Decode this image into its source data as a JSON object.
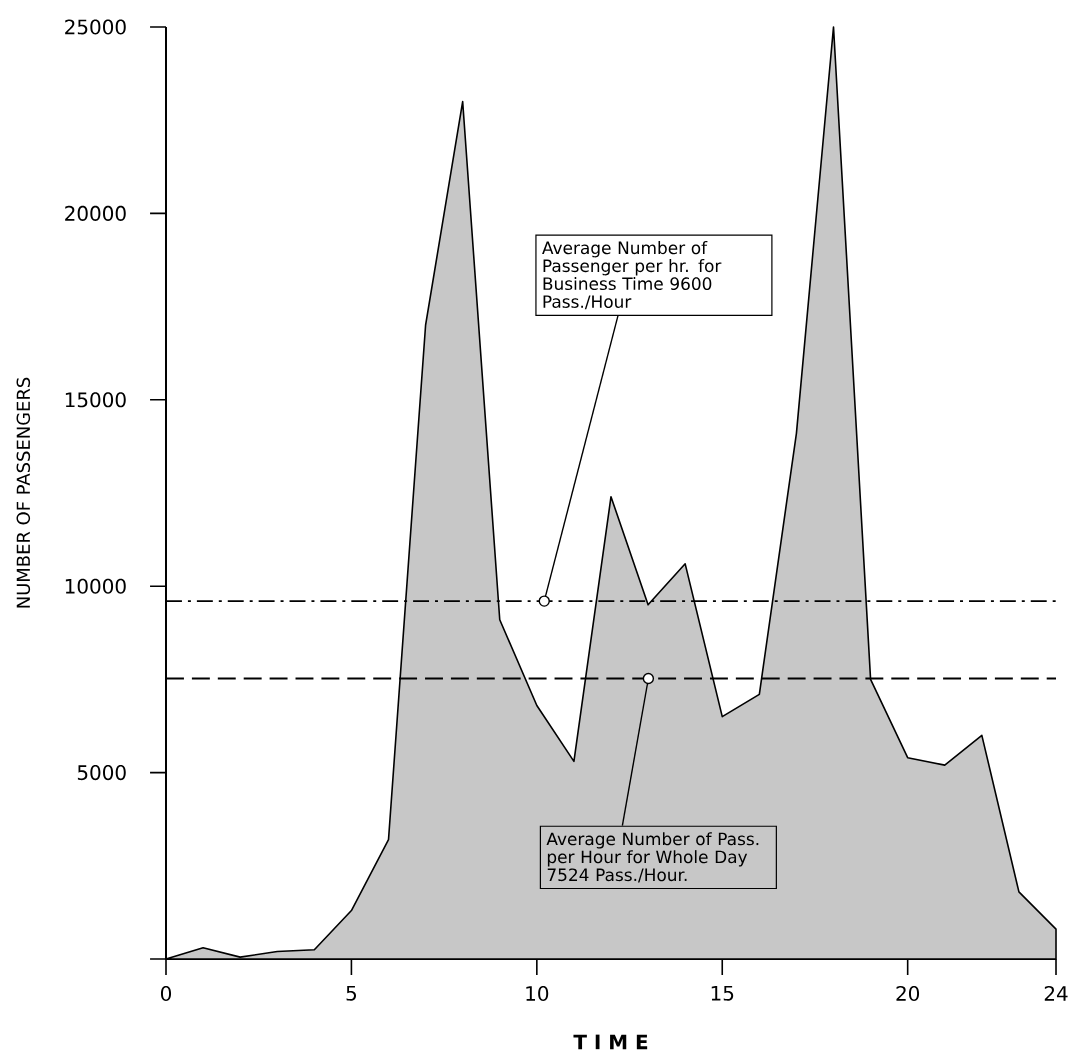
{
  "chart_data": {
    "type": "area",
    "xlabel": "T I M E",
    "ylabel": "NUMBER OF PASSENGERS",
    "x": [
      0,
      1,
      2,
      3,
      4,
      5,
      6,
      7,
      8,
      9,
      10,
      11,
      12,
      13,
      14,
      15,
      16,
      17,
      18,
      19,
      20,
      21,
      22,
      23,
      24
    ],
    "values": [
      0,
      300,
      50,
      200,
      250,
      1300,
      3200,
      17000,
      23000,
      9100,
      6800,
      5300,
      12400,
      9500,
      10600,
      6500,
      7100,
      14100,
      25000,
      7500,
      5400,
      5200,
      6000,
      1800,
      800
    ],
    "color": "#000000",
    "xlim": [
      0,
      24
    ],
    "xticks": [
      0,
      5,
      10,
      15,
      20,
      24
    ],
    "ylim": [
      0,
      25000
    ],
    "yticks": [
      {
        "value": 0,
        "label": null
      },
      5000,
      10000,
      15000,
      20000,
      25000
    ],
    "grid": false,
    "marker": "none",
    "ref_lines": [
      {
        "axis": "y",
        "value": 9600,
        "line_style": "dashdot"
      },
      {
        "axis": "y",
        "value": 7524,
        "line_style": "dashed"
      }
    ],
    "annotations": [
      "Average Number of Passenger per hr. for Business Time 9600 Pass./Hour",
      "Average Number of Pass. per Hour for Whole Day 7524 Pass./Hour."
    ]
  }
}
